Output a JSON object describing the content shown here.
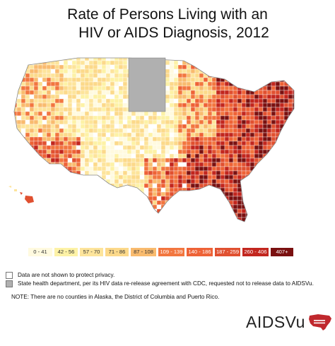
{
  "title": {
    "line1": "Rate of Persons Living with an",
    "line2": "HIV or AIDS Diagnosis, 2012"
  },
  "legend": {
    "bins": [
      {
        "label": "0 - 41",
        "color": "#fffadf",
        "text_color": "#333333"
      },
      {
        "label": "42 - 56",
        "color": "#fdf2a6",
        "text_color": "#333333"
      },
      {
        "label": "57 - 70",
        "color": "#fde49b",
        "text_color": "#333333"
      },
      {
        "label": "71 - 86",
        "color": "#fcd98a",
        "text_color": "#333333"
      },
      {
        "label": "87 - 108",
        "color": "#f9bb6e",
        "text_color": "#333333"
      },
      {
        "label": "109 - 139",
        "color": "#f2763f",
        "text_color": "#ffffff"
      },
      {
        "label": "140 - 186",
        "color": "#ee6236",
        "text_color": "#ffffff"
      },
      {
        "label": "187 - 259",
        "color": "#e05030",
        "text_color": "#ffffff"
      },
      {
        "label": "260 - 406",
        "color": "#c2261e",
        "text_color": "#ffffff"
      },
      {
        "label": "407+",
        "color": "#7a1010",
        "text_color": "#ffffff"
      }
    ]
  },
  "notes": {
    "privacy": "Data are not shown to protect privacy.",
    "state_dept": "State health department, per its HIV data re-release agreement with CDC, requested not to release data to AIDSVu.",
    "footnote": "NOTE: There are no counties in Alaska, the District of Columbia and Puerto Rico."
  },
  "brand": {
    "name": "AIDSVu",
    "color": "#c0282d"
  },
  "map": {
    "regions_no_data_state": [
      "North Dakota",
      "South Dakota"
    ],
    "high_rate_regions": [
      "Southeast",
      "Florida",
      "Northeast corridor",
      "Louisiana",
      "Southern California"
    ]
  }
}
